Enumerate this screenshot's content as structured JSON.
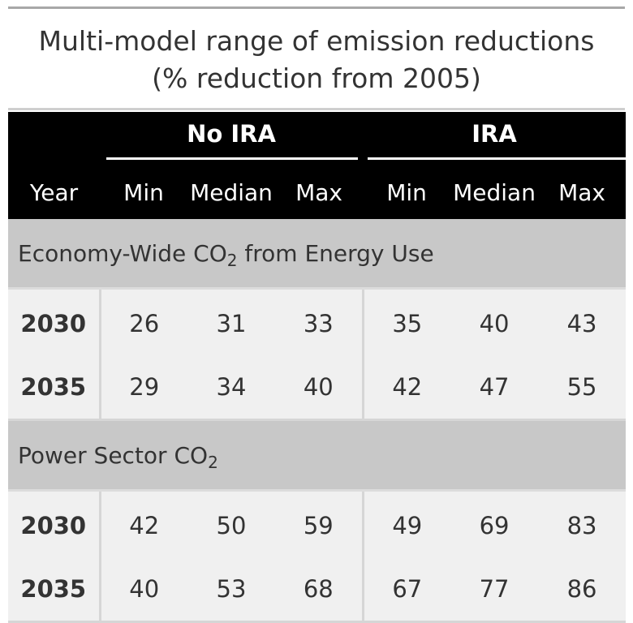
{
  "title": {
    "line1": "Multi-model range of emission reductions",
    "line2": "(% reduction from 2005)"
  },
  "table": {
    "spanners": [
      "No IRA",
      "IRA"
    ],
    "columns": [
      "Year",
      "Min",
      "Median",
      "Max",
      "Min",
      "Median",
      "Max"
    ],
    "groups": [
      {
        "label": "Economy-Wide CO",
        "subscript": "2",
        "suffix": " from Energy Use",
        "rows": [
          {
            "year": "2030",
            "no_ira": {
              "min": "26",
              "median": "31",
              "max": "33"
            },
            "ira": {
              "min": "35",
              "median": "40",
              "max": "43"
            }
          },
          {
            "year": "2035",
            "no_ira": {
              "min": "29",
              "median": "34",
              "max": "40"
            },
            "ira": {
              "min": "42",
              "median": "47",
              "max": "55"
            }
          }
        ]
      },
      {
        "label": "Power Sector CO",
        "subscript": "2",
        "suffix": "",
        "rows": [
          {
            "year": "2030",
            "no_ira": {
              "min": "42",
              "median": "50",
              "max": "59"
            },
            "ira": {
              "min": "49",
              "median": "69",
              "max": "83"
            }
          },
          {
            "year": "2035",
            "no_ira": {
              "min": "40",
              "median": "53",
              "max": "68"
            },
            "ira": {
              "min": "67",
              "median": "77",
              "max": "86"
            }
          }
        ]
      }
    ]
  }
}
